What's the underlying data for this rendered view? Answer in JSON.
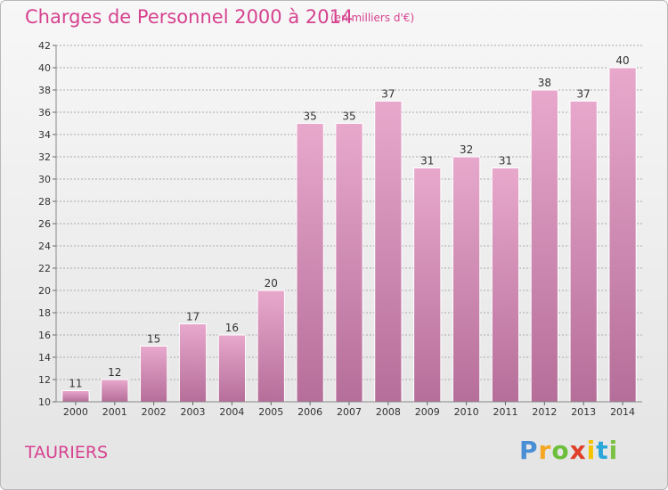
{
  "title": "Charges de Personnel 2000 à 2014",
  "subtitle": "(en milliers d'€)",
  "commune": "TAURIERS",
  "logo": {
    "letters": [
      "P",
      "r",
      "o",
      "x",
      "i",
      "t",
      "i"
    ],
    "colors": [
      "#4a8fd6",
      "#f5a623",
      "#6cbf3a",
      "#e0402a",
      "#f5c400",
      "#2aa6d8",
      "#7ac143"
    ]
  },
  "colors": {
    "title": "#d6428f",
    "bar_top": "#e8a8cc",
    "bar_bottom": "#b56e99",
    "bar_border": "#ffffff",
    "grid": "#aaaaaa"
  },
  "chart_data": {
    "type": "bar",
    "categories": [
      "2000",
      "2001",
      "2002",
      "2003",
      "2004",
      "2005",
      "2006",
      "2007",
      "2008",
      "2009",
      "2010",
      "2011",
      "2012",
      "2013",
      "2014"
    ],
    "values": [
      11,
      12,
      15,
      17,
      16,
      20,
      35,
      35,
      37,
      31,
      32,
      31,
      38,
      37,
      40
    ],
    "ylim": [
      10,
      42
    ],
    "yticks": [
      10,
      12,
      14,
      16,
      18,
      20,
      22,
      24,
      26,
      28,
      30,
      32,
      34,
      36,
      38,
      40,
      42
    ],
    "grid": true,
    "xlabel": "",
    "ylabel": ""
  }
}
